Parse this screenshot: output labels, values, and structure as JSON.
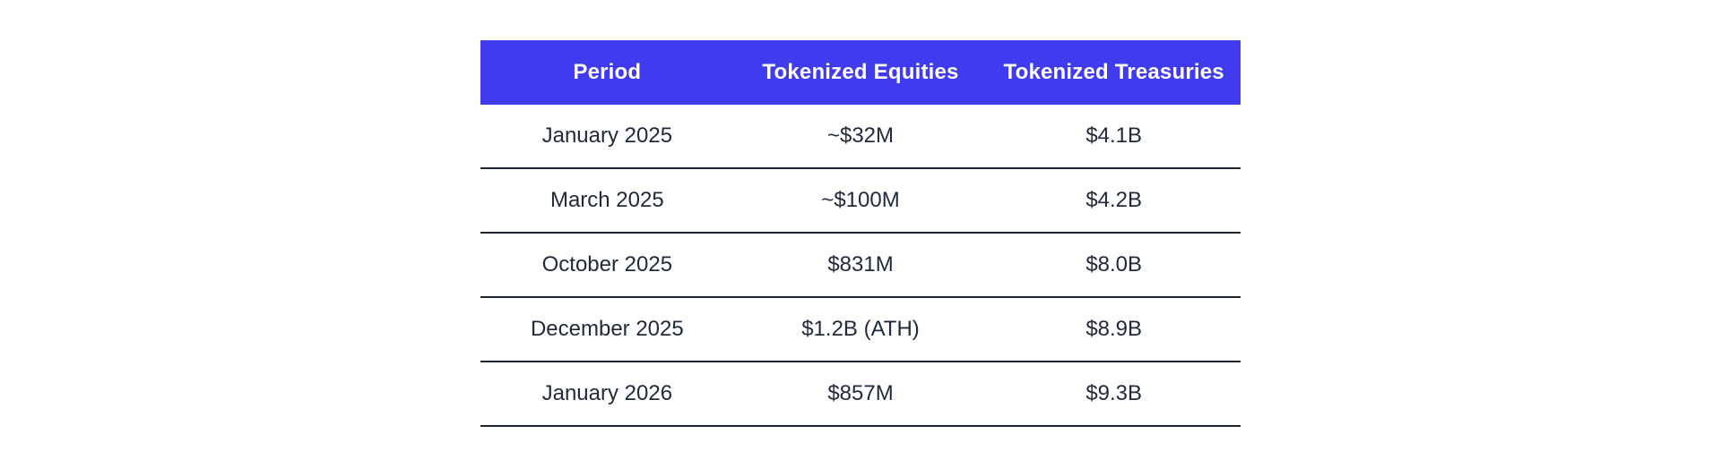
{
  "chart_data": {
    "type": "table",
    "columns": [
      "Period",
      "Tokenized Equities",
      "Tokenized Treasuries"
    ],
    "rows": [
      [
        "January 2025",
        "~$32M",
        "$4.1B"
      ],
      [
        "March 2025",
        "~$100M",
        "$4.2B"
      ],
      [
        "October 2025",
        "$831M",
        "$8.0B"
      ],
      [
        "December 2025",
        "$1.2B (ATH)",
        "$8.9B"
      ],
      [
        "January 2026",
        "$857M",
        "$9.3B"
      ]
    ]
  },
  "colors": {
    "header_bg": "#413BEF",
    "header_text": "#FFFFFF",
    "body_text": "#1E2A3B",
    "divider": "#1B2430",
    "page_bg": "#FFFFFF"
  }
}
